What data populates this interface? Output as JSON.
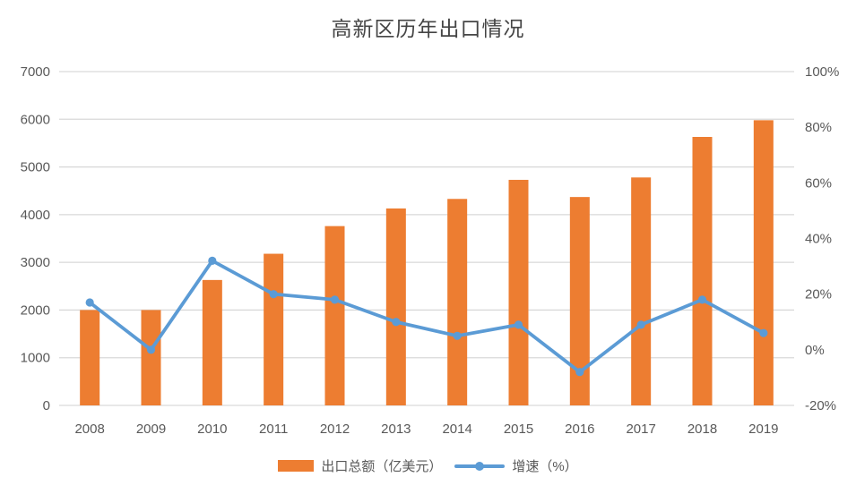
{
  "chart_data": {
    "type": "combo",
    "title": "高新区历年出口情况",
    "categories": [
      "2008",
      "2009",
      "2010",
      "2011",
      "2012",
      "2013",
      "2014",
      "2015",
      "2016",
      "2017",
      "2018",
      "2019"
    ],
    "series": [
      {
        "name": "出口总额（亿美元）",
        "type": "bar",
        "axis": "left",
        "color": "#ED7D31",
        "values": [
          2000,
          2000,
          2630,
          3180,
          3760,
          4130,
          4330,
          4730,
          4370,
          4780,
          5630,
          5980
        ]
      },
      {
        "name": "增速（%）",
        "type": "line",
        "axis": "right",
        "color": "#5B9BD5",
        "values": [
          17,
          0,
          32,
          20,
          18,
          10,
          5,
          9,
          -8,
          9,
          18,
          6
        ]
      }
    ],
    "left_axis": {
      "min": 0,
      "max": 7000,
      "step": 1000,
      "labels": [
        "0",
        "1000",
        "2000",
        "3000",
        "4000",
        "5000",
        "6000",
        "7000"
      ]
    },
    "right_axis": {
      "min": -20,
      "max": 100,
      "step": 20,
      "labels": [
        "-20%",
        "0%",
        "20%",
        "40%",
        "60%",
        "80%",
        "100%"
      ]
    },
    "grid": true,
    "legend_position": "bottom",
    "colors": {
      "grid": "#D9D9D9",
      "axis_text": "#595959",
      "title_text": "#454545"
    }
  }
}
